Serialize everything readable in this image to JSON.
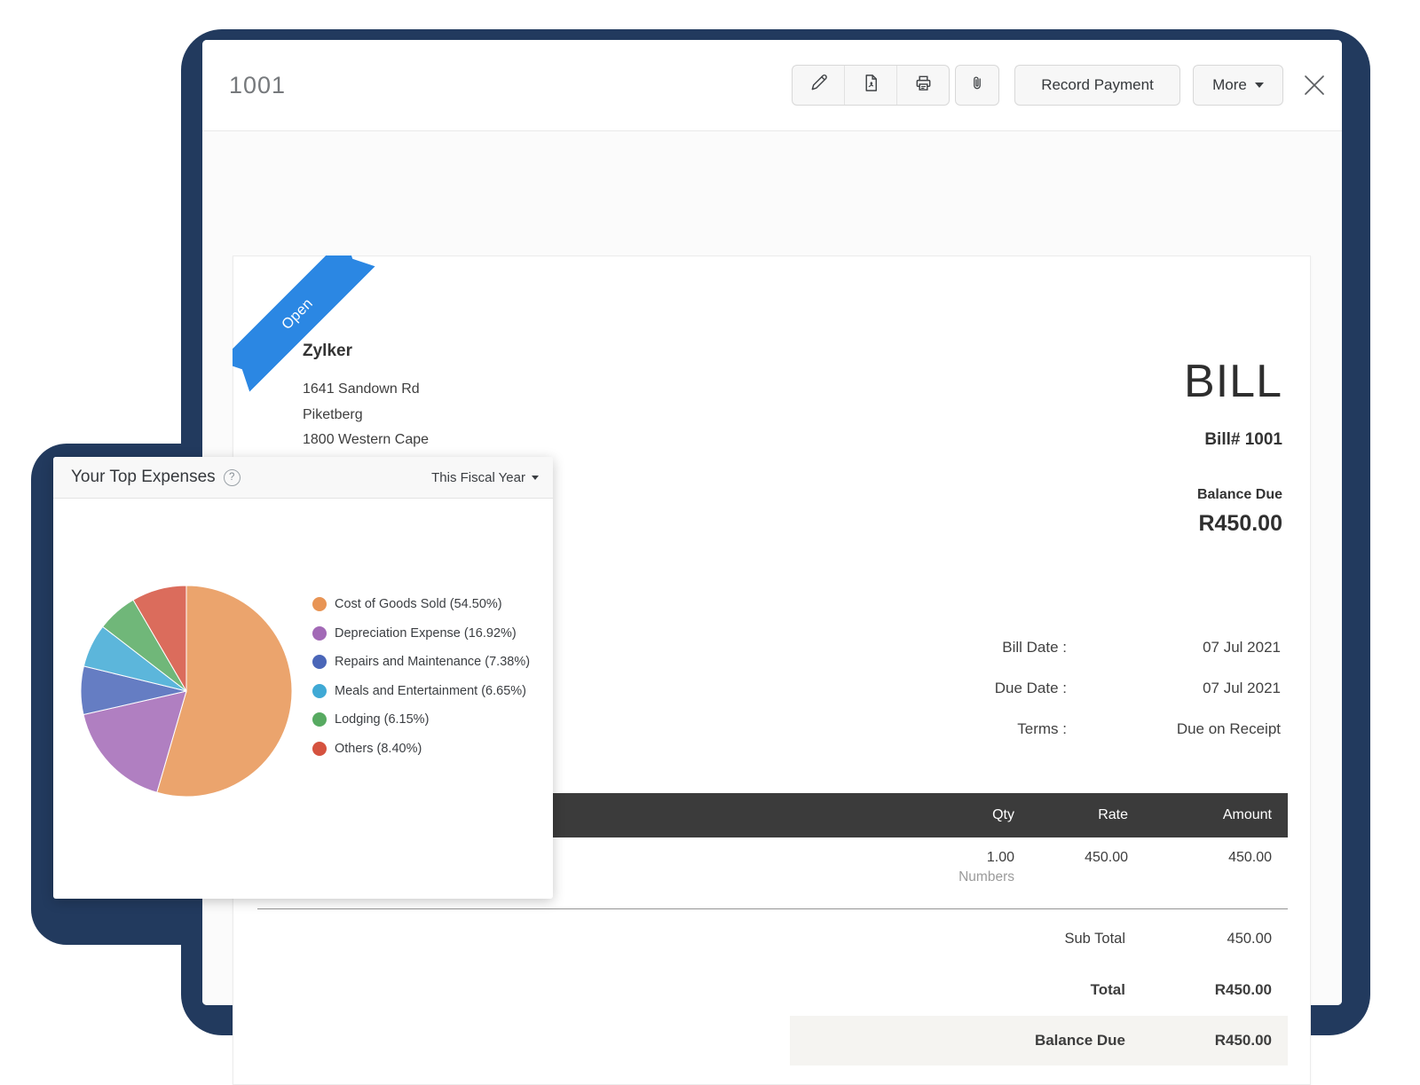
{
  "window": {
    "title": "1001"
  },
  "toolbar": {
    "record_payment": "Record Payment",
    "more": "More",
    "icon_names": [
      "edit-icon",
      "pdf-icon",
      "print-icon",
      "attachment-icon",
      "close-icon"
    ]
  },
  "bill": {
    "status": "Open",
    "vendor": {
      "name": "Zylker",
      "address": [
        "1641 Sandown Rd",
        "Piketberg",
        "1800 Western Cape"
      ]
    },
    "doc_type": "BILL",
    "number": "Bill# 1001",
    "balance_due_label": "Balance Due",
    "balance_due_amount": "R450.00",
    "meta": [
      {
        "label": "Bill Date :",
        "value": "07 Jul 2021"
      },
      {
        "label": "Due Date :",
        "value": "07 Jul 2021"
      },
      {
        "label": "Terms :",
        "value": "Due on Receipt"
      }
    ],
    "table": {
      "headers": [
        "Qty",
        "Rate",
        "Amount"
      ],
      "line_item": {
        "qty": "1.00",
        "rate": "450.00",
        "amount": "450.00",
        "account": "Numbers"
      },
      "totals": [
        {
          "label": "Sub Total",
          "value": "450.00"
        },
        {
          "label": "Total",
          "value": "R450.00"
        },
        {
          "label": "Balance Due",
          "value": "R450.00"
        }
      ]
    }
  },
  "expenses_card": {
    "title": "Your Top Expenses",
    "period": "This Fiscal Year"
  },
  "chart_data": {
    "type": "pie",
    "title": "Your Top Expenses",
    "labels": [
      "Cost of Goods Sold",
      "Depreciation Expense",
      "Repairs and Maintenance",
      "Meals and Entertainment",
      "Lodging",
      "Others"
    ],
    "values": [
      54.5,
      16.92,
      7.38,
      6.65,
      6.15,
      8.4
    ],
    "legend": [
      "Cost of Goods Sold (54.50%)",
      "Depreciation Expense (16.92%)",
      "Repairs and Maintenance (7.38%)",
      "Meals and Entertainment (6.65%)",
      "Lodging (6.15%)",
      "Others (8.40%)"
    ],
    "colors": [
      "#e89454",
      "#a269b6",
      "#4a66b8",
      "#3fa9d5",
      "#57aa61",
      "#d5523f"
    ],
    "legend_position": "right",
    "start_angle_deg": -90,
    "direction": "clockwise"
  },
  "colors": {
    "frame_navy": "#223a5e",
    "ribbon_blue": "#2b87e3",
    "table_header_bg": "#3b3b3b",
    "highlight_row_bg": "#f5f4f1"
  }
}
